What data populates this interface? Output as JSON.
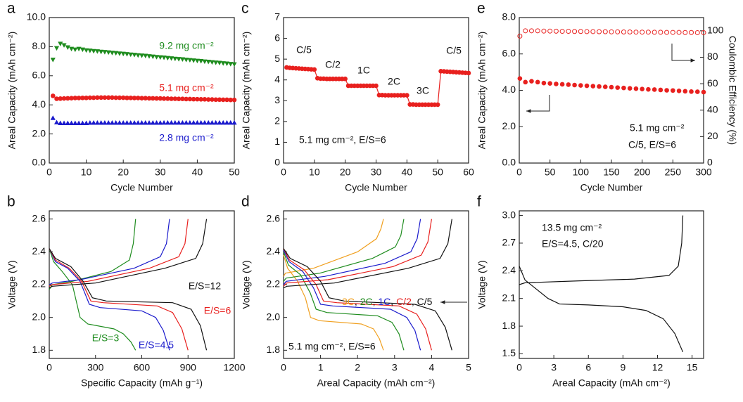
{
  "chart_data": [
    {
      "type": "line",
      "panel": "a",
      "xlabel": "Cycle Number",
      "ylabel": "Areal Capacity (mAh cm⁻²)",
      "xlim": [
        0,
        50
      ],
      "xticks": [
        0,
        10,
        20,
        30,
        40,
        50
      ],
      "ylim": [
        0,
        10
      ],
      "yticks": [
        {
          "value": 0,
          "label": "0.0"
        },
        {
          "value": 2,
          "label": "2.0"
        },
        {
          "value": 4,
          "label": "4.0"
        },
        {
          "value": 6,
          "label": "6.0"
        },
        {
          "value": 8,
          "label": "8.0"
        },
        {
          "value": 10,
          "label": "10.0"
        }
      ],
      "x": [
        1,
        2,
        3,
        4,
        5,
        6,
        7,
        8,
        9,
        10,
        11,
        12,
        13,
        14,
        15,
        16,
        17,
        18,
        19,
        20,
        21,
        22,
        23,
        24,
        25,
        26,
        27,
        28,
        29,
        30,
        31,
        32,
        33,
        34,
        35,
        36,
        37,
        38,
        39,
        40,
        41,
        42,
        43,
        44,
        45,
        46,
        47,
        48,
        49,
        50
      ],
      "series": [
        {
          "name": "9.2 mg cm⁻²",
          "color": "#1e8c1e",
          "marker": "triangle-down",
          "values": [
            7.1,
            7.9,
            8.2,
            8.1,
            7.95,
            7.85,
            7.8,
            7.85,
            7.8,
            7.75,
            7.73,
            7.7,
            7.68,
            7.65,
            7.63,
            7.61,
            7.58,
            7.56,
            7.53,
            7.51,
            7.49,
            7.46,
            7.44,
            7.41,
            7.39,
            7.37,
            7.34,
            7.32,
            7.29,
            7.27,
            7.25,
            7.22,
            7.2,
            7.17,
            7.15,
            7.13,
            7.1,
            7.08,
            7.05,
            7.03,
            7.01,
            6.98,
            6.96,
            6.93,
            6.91,
            6.89,
            6.86,
            6.84,
            6.81,
            6.79
          ]
        },
        {
          "name": "5.1 mg cm⁻²",
          "color": "#e8201e",
          "marker": "circle",
          "values": [
            4.62,
            4.42,
            4.43,
            4.44,
            4.45,
            4.46,
            4.47,
            4.47,
            4.48,
            4.48,
            4.49,
            4.49,
            4.5,
            4.5,
            4.5,
            4.5,
            4.5,
            4.49,
            4.49,
            4.49,
            4.48,
            4.48,
            4.47,
            4.47,
            4.46,
            4.46,
            4.45,
            4.45,
            4.44,
            4.44,
            4.43,
            4.43,
            4.42,
            4.42,
            4.41,
            4.41,
            4.4,
            4.4,
            4.39,
            4.39,
            4.38,
            4.38,
            4.37,
            4.37,
            4.36,
            4.36,
            4.35,
            4.35,
            4.34,
            4.34
          ]
        },
        {
          "name": "2.8 mg cm⁻²",
          "color": "#1a1acc",
          "marker": "triangle",
          "values": [
            3.1,
            2.8,
            2.75,
            2.75,
            2.75,
            2.75,
            2.75,
            2.75,
            2.75,
            2.75,
            2.77,
            2.77,
            2.77,
            2.77,
            2.77,
            2.77,
            2.77,
            2.77,
            2.77,
            2.77,
            2.77,
            2.77,
            2.77,
            2.77,
            2.77,
            2.77,
            2.77,
            2.77,
            2.77,
            2.77,
            2.78,
            2.78,
            2.78,
            2.78,
            2.78,
            2.78,
            2.78,
            2.78,
            2.78,
            2.78,
            2.78,
            2.78,
            2.78,
            2.78,
            2.78,
            2.78,
            2.78,
            2.78,
            2.78,
            2.78
          ]
        }
      ]
    },
    {
      "type": "line",
      "panel": "b",
      "xlabel": "Specific Capacity (mAh g⁻¹)",
      "ylabel": "Voltage (V)",
      "xlim": [
        0,
        1200
      ],
      "xticks": [
        0,
        300,
        600,
        900,
        1200
      ],
      "ylim": [
        1.75,
        2.65
      ],
      "yticks": [
        1.8,
        {
          "value": 2,
          "label": "2.0"
        },
        2.2,
        2.4,
        2.6
      ],
      "series": [
        {
          "name": "E/S=3",
          "color": "#1e8c1e",
          "x": [
            0,
            28,
            84,
            150,
            200,
            250,
            420,
            480,
            530,
            560,
            null,
            0,
            20,
            150,
            400,
            520,
            545,
            560
          ],
          "values": [
            2.42,
            2.34,
            2.28,
            2.2,
            2.0,
            1.96,
            1.93,
            1.9,
            1.85,
            1.8,
            null,
            2.17,
            2.2,
            2.22,
            2.28,
            2.35,
            2.45,
            2.6
          ]
        },
        {
          "name": "E/S=4.5",
          "color": "#1a1acc",
          "x": [
            0,
            40,
            120,
            200,
            260,
            330,
            600,
            690,
            740,
            780,
            null,
            0,
            20,
            200,
            550,
            720,
            760,
            780
          ],
          "values": [
            2.42,
            2.34,
            2.3,
            2.22,
            2.08,
            2.06,
            2.04,
            2.0,
            1.92,
            1.8,
            null,
            2.2,
            2.21,
            2.23,
            2.3,
            2.37,
            2.45,
            2.6
          ]
        },
        {
          "name": "E/S=6",
          "color": "#e8201e",
          "x": [
            0,
            40,
            130,
            210,
            270,
            350,
            700,
            800,
            860,
            900,
            null,
            0,
            20,
            250,
            650,
            840,
            880,
            900
          ],
          "values": [
            2.42,
            2.35,
            2.3,
            2.22,
            2.1,
            2.09,
            2.07,
            2.03,
            1.93,
            1.8,
            null,
            2.19,
            2.2,
            2.22,
            2.3,
            2.37,
            2.45,
            2.6
          ]
        },
        {
          "name": "E/S=12",
          "color": "#111111",
          "x": [
            0,
            40,
            140,
            220,
            280,
            370,
            800,
            920,
            980,
            1020,
            null,
            0,
            20,
            300,
            750,
            950,
            995,
            1020
          ],
          "values": [
            2.42,
            2.36,
            2.31,
            2.22,
            2.12,
            2.1,
            2.09,
            2.05,
            1.95,
            1.8,
            null,
            2.18,
            2.19,
            2.21,
            2.3,
            2.36,
            2.45,
            2.6
          ]
        }
      ]
    },
    {
      "type": "line",
      "panel": "c",
      "xlabel": "Cycle Number",
      "ylabel": "Areal Capacity (mAh cm⁻²)",
      "xlim": [
        0,
        60
      ],
      "xticks": [
        0,
        10,
        20,
        30,
        40,
        50,
        60
      ],
      "ylim": [
        0,
        7
      ],
      "yticks": [
        0,
        1,
        2,
        3,
        4,
        5,
        6,
        7
      ],
      "x": [
        1,
        2,
        3,
        4,
        5,
        6,
        7,
        8,
        9,
        10,
        11,
        12,
        13,
        14,
        15,
        16,
        17,
        18,
        19,
        20,
        21,
        22,
        23,
        24,
        25,
        26,
        27,
        28,
        29,
        30,
        31,
        32,
        33,
        34,
        35,
        36,
        37,
        38,
        39,
        40,
        41,
        42,
        43,
        44,
        45,
        46,
        47,
        48,
        49,
        50,
        51,
        52,
        53,
        54,
        55,
        56,
        57,
        58,
        59,
        60
      ],
      "series": [
        {
          "color": "#e8201e",
          "marker": "circle",
          "line": true,
          "values": [
            4.6,
            4.58,
            4.57,
            4.56,
            4.55,
            4.54,
            4.53,
            4.52,
            4.51,
            4.5,
            4.08,
            4.06,
            4.06,
            4.05,
            4.05,
            4.05,
            4.05,
            4.05,
            4.05,
            4.05,
            3.72,
            3.72,
            3.72,
            3.72,
            3.72,
            3.72,
            3.72,
            3.72,
            3.72,
            3.72,
            3.27,
            3.27,
            3.26,
            3.26,
            3.26,
            3.26,
            3.26,
            3.26,
            3.26,
            3.26,
            2.82,
            2.82,
            2.81,
            2.81,
            2.81,
            2.81,
            2.81,
            2.81,
            2.81,
            2.81,
            4.42,
            4.41,
            4.4,
            4.39,
            4.38,
            4.37,
            4.36,
            4.35,
            4.34,
            4.33
          ]
        }
      ],
      "annotations": [
        {
          "text": "C/5"
        },
        {
          "text": "C/2"
        },
        {
          "text": "1C"
        },
        {
          "text": "2C"
        },
        {
          "text": "3C"
        },
        {
          "text": "C/5"
        },
        {
          "text": "5.1 mg cm⁻², E/S=6"
        }
      ]
    },
    {
      "type": "line",
      "panel": "d",
      "xlabel": "Areal Capacity (mAh cm⁻²)",
      "ylabel": "Voltage (V)",
      "xlim": [
        0,
        5
      ],
      "xticks": [
        0,
        1,
        2,
        3,
        4,
        5
      ],
      "ylim": [
        1.75,
        2.65
      ],
      "yticks": [
        1.8,
        {
          "value": 2,
          "label": "2.0"
        },
        2.2,
        2.4,
        2.6
      ],
      "legend_separator": ", ",
      "series": [
        {
          "name": "3C",
          "color": "#f0a020",
          "x": [
            0,
            0.11,
            0.38,
            0.59,
            0.73,
            0.97,
            2.1,
            2.43,
            2.59,
            2.7,
            null,
            0,
            0.05,
            0.81,
            2.0,
            2.51,
            2.63,
            2.7
          ],
          "values": [
            2.38,
            2.3,
            2.22,
            2.12,
            2.0,
            1.98,
            1.96,
            1.93,
            1.87,
            1.8,
            null,
            2.25,
            2.27,
            2.3,
            2.4,
            2.48,
            2.54,
            2.6
          ]
        },
        {
          "name": "2C",
          "color": "#1e8c1e",
          "x": [
            0,
            0.13,
            0.46,
            0.72,
            0.88,
            1.17,
            2.54,
            2.93,
            3.12,
            3.25,
            null,
            0,
            0.07,
            0.98,
            2.4,
            3.02,
            3.17,
            3.25
          ],
          "values": [
            2.4,
            2.32,
            2.26,
            2.15,
            2.05,
            2.03,
            2.01,
            1.97,
            1.9,
            1.8,
            null,
            2.22,
            2.24,
            2.27,
            2.36,
            2.43,
            2.5,
            2.6
          ]
        },
        {
          "name": "1C",
          "color": "#1a1acc",
          "x": [
            0,
            0.15,
            0.52,
            0.81,
            1.0,
            1.33,
            2.89,
            3.33,
            3.55,
            3.7,
            null,
            0,
            0.07,
            1.11,
            2.74,
            3.44,
            3.61,
            3.7
          ],
          "values": [
            2.41,
            2.34,
            2.28,
            2.18,
            2.08,
            2.07,
            2.05,
            2.0,
            1.92,
            1.8,
            null,
            2.2,
            2.22,
            2.25,
            2.33,
            2.4,
            2.48,
            2.6
          ]
        },
        {
          "name": "C/2",
          "color": "#e8201e",
          "x": [
            0,
            0.16,
            0.56,
            0.88,
            1.08,
            1.44,
            3.12,
            3.6,
            3.84,
            4.0,
            null,
            0,
            0.08,
            1.2,
            2.96,
            3.72,
            3.9,
            4.0
          ],
          "values": [
            2.42,
            2.35,
            2.29,
            2.2,
            2.1,
            2.09,
            2.07,
            2.02,
            1.93,
            1.8,
            null,
            2.19,
            2.21,
            2.23,
            2.31,
            2.38,
            2.46,
            2.6
          ]
        },
        {
          "name": "C/5",
          "color": "#111111",
          "x": [
            0,
            0.18,
            0.64,
            1.0,
            1.23,
            1.64,
            3.55,
            4.1,
            4.37,
            4.55,
            null,
            0,
            0.09,
            1.37,
            3.37,
            4.23,
            4.44,
            4.55
          ],
          "values": [
            2.42,
            2.36,
            2.31,
            2.22,
            2.12,
            2.1,
            2.08,
            2.04,
            1.94,
            1.8,
            null,
            2.18,
            2.19,
            2.21,
            2.3,
            2.36,
            2.45,
            2.6
          ]
        }
      ],
      "annotations": [
        {
          "text": "5.1 mg cm⁻², E/S=6"
        }
      ]
    },
    {
      "type": "line",
      "panel": "e",
      "xlabel": "Cycle Number",
      "ylabel": "Areal Capacity (mAh cm⁻²)",
      "y2label": "Coulombic Efficiency (%)",
      "xlim": [
        0,
        300
      ],
      "xticks": [
        0,
        50,
        100,
        150,
        200,
        250,
        300
      ],
      "ylim": [
        0,
        8
      ],
      "yticks": [
        {
          "value": 0,
          "label": "0.0"
        },
        {
          "value": 2,
          "label": "2.0"
        },
        {
          "value": 4,
          "label": "4.0"
        },
        {
          "value": 6,
          "label": "6.0"
        },
        {
          "value": 8,
          "label": "8.0"
        }
      ],
      "y2lim": [
        0,
        110
      ],
      "y2ticks": [
        0,
        20,
        40,
        60,
        80,
        100
      ],
      "x": [
        1,
        10,
        20,
        30,
        40,
        50,
        60,
        70,
        80,
        90,
        100,
        110,
        120,
        130,
        140,
        150,
        160,
        170,
        180,
        190,
        200,
        210,
        220,
        230,
        240,
        250,
        260,
        270,
        280,
        290,
        300
      ],
      "series": [
        {
          "color": "#e8201e",
          "marker": "circle",
          "values": [
            4.65,
            4.45,
            4.5,
            4.45,
            4.4,
            4.38,
            4.35,
            4.33,
            4.31,
            4.29,
            4.27,
            4.25,
            4.23,
            4.21,
            4.19,
            4.17,
            4.15,
            4.13,
            4.11,
            4.09,
            4.07,
            4.05,
            4.04,
            4.02,
            4.0,
            3.99,
            3.97,
            3.95,
            3.93,
            3.92,
            3.9
          ]
        },
        {
          "color": "#e8201e",
          "marker": "circle-open",
          "axis": "y2",
          "values": [
            96,
            100,
            100,
            100,
            99.8,
            99.8,
            99.7,
            99.6,
            99.6,
            99.5,
            99.5,
            99.4,
            99.4,
            99.3,
            99.3,
            99.2,
            99.2,
            99.1,
            99.1,
            99.0,
            99.0,
            99.0,
            98.9,
            98.9,
            98.8,
            98.8,
            98.8,
            98.7,
            98.7,
            98.6,
            98.6
          ]
        }
      ],
      "annotations": [
        {
          "text": "5.1 mg cm⁻²"
        },
        {
          "text": "C/5, E/S=6"
        }
      ]
    },
    {
      "type": "line",
      "panel": "f",
      "xlabel": "Areal Capacity (mAh cm⁻²)",
      "ylabel": "Voltage (V)",
      "xlim": [
        0,
        16
      ],
      "xticks": [
        0,
        3,
        6,
        9,
        12,
        15
      ],
      "ylim": [
        1.45,
        3.05
      ],
      "yticks": [
        1.5,
        1.8,
        2.1,
        2.4,
        2.7,
        {
          "value": 3,
          "label": "3.0"
        }
      ],
      "series": [
        {
          "color": "#111111",
          "x": [
            0,
            0.5,
            1.5,
            2.5,
            3.5,
            6,
            9,
            11,
            12.5,
            13.5,
            14.2,
            null,
            0,
            0.5,
            5,
            10,
            13,
            13.8,
            14.1,
            14.2
          ],
          "values": [
            2.45,
            2.3,
            2.2,
            2.1,
            2.04,
            2.03,
            2.01,
            1.97,
            1.88,
            1.72,
            1.52,
            null,
            2.25,
            2.27,
            2.29,
            2.31,
            2.35,
            2.45,
            2.7,
            3.0
          ]
        }
      ],
      "annotations": [
        {
          "text": "13.5 mg cm⁻²"
        },
        {
          "text": "E/S=4.5, C/20"
        }
      ]
    }
  ]
}
